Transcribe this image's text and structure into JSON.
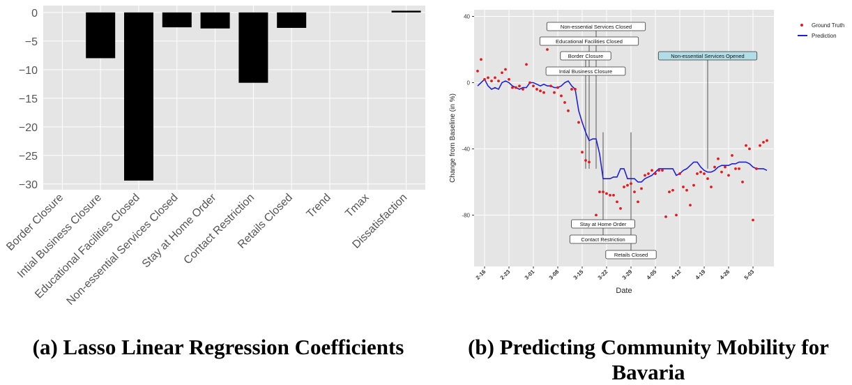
{
  "captions": {
    "a": "(a) Lasso Linear Regression Coefficients",
    "b": "(b) Predicting Community Mobility for Bavaria"
  },
  "colors": {
    "panel_bg": "#e5e5e5",
    "grid": "#ffffff",
    "bar": "#000000",
    "ground_truth": "#e41a1c",
    "prediction": "#1f1fd6",
    "highlight_box": "#b3dde6"
  },
  "chart_data": [
    {
      "type": "bar",
      "categories": [
        "Border Closure",
        "Intial Business Closure",
        "Educational Facilities Closed",
        "Non-essential Services Closed",
        "Stay at Home Order",
        "Contact Restriction",
        "Retails Closed",
        "Trend",
        "Tmax",
        "Dissatisfaction"
      ],
      "values": [
        0,
        -8.0,
        -29.4,
        -2.6,
        -2.8,
        -12.3,
        -2.7,
        0,
        0,
        0.3
      ],
      "ylim": [
        -31,
        1.2
      ],
      "yticks": [
        0,
        -5,
        -10,
        -15,
        -20,
        -25,
        -30
      ],
      "title": "",
      "xlabel": "",
      "ylabel": "",
      "grid": true
    },
    {
      "type": "line",
      "xlabel": "Date",
      "ylabel": "Change from Baseline (in %)",
      "ylim": [
        -111,
        44
      ],
      "yticks": [
        40,
        0,
        -40,
        -80
      ],
      "xticks": [
        "2-16",
        "2-23",
        "3-01",
        "3-08",
        "3-15",
        "3-22",
        "3-29",
        "4-05",
        "4-12",
        "4-19",
        "4-26",
        "5-03"
      ],
      "xticks_day": [
        0,
        7,
        14,
        21,
        28,
        35,
        42,
        49,
        56,
        63,
        70,
        77
      ],
      "xlim_day": [
        -3,
        83
      ],
      "legend": {
        "position": "top-right",
        "entries": [
          "Ground Truth",
          "Prediction"
        ]
      },
      "series": [
        {
          "name": "Prediction",
          "style": "line",
          "x": [
            -2,
            -1,
            0,
            1,
            2,
            3,
            4,
            5,
            6,
            7,
            8,
            9,
            10,
            11,
            12,
            13,
            14,
            15,
            16,
            17,
            18,
            19,
            20,
            21,
            22,
            23,
            24,
            25,
            26,
            27,
            28,
            29,
            30,
            31,
            32,
            33,
            34,
            35,
            36,
            37,
            38,
            39,
            40,
            41,
            42,
            43,
            44,
            45,
            46,
            47,
            48,
            49,
            50,
            51,
            52,
            53,
            54,
            55,
            56,
            57,
            58,
            59,
            60,
            61,
            62,
            63,
            64,
            65,
            66,
            67,
            68,
            69,
            70,
            71,
            72,
            73,
            74,
            75,
            76,
            77,
            78,
            79,
            80,
            81
          ],
          "y": [
            -2,
            0,
            2,
            -2,
            -4,
            -3,
            -4,
            0,
            1,
            0,
            -2,
            -3,
            -4,
            -3,
            -3,
            0,
            0,
            -1,
            -2,
            -1,
            -2,
            -2,
            -3,
            -3,
            -2,
            0,
            1,
            -2,
            -4,
            -17,
            -24,
            -30,
            -35,
            -34,
            -34,
            -43,
            -58,
            -58,
            -58,
            -57,
            -57,
            -52,
            -52,
            -58,
            -58,
            -58,
            -60,
            -60,
            -58,
            -57,
            -56,
            -54,
            -52,
            -52,
            -52,
            -52,
            -52,
            -56,
            -55,
            -53,
            -52,
            -50,
            -48,
            -48,
            -51,
            -53,
            -54,
            -54,
            -53,
            -51,
            -50,
            -50,
            -50,
            -49,
            -49,
            -48,
            -48,
            -48,
            -49,
            -51,
            -52,
            -52,
            -52,
            -53
          ]
        },
        {
          "name": "Ground Truth",
          "style": "points",
          "x": [
            -2,
            -1,
            0,
            1,
            2,
            3,
            4,
            5,
            6,
            7,
            8,
            9,
            10,
            11,
            12,
            13,
            14,
            15,
            16,
            17,
            18,
            19,
            20,
            21,
            22,
            23,
            24,
            25,
            26,
            27,
            28,
            29,
            30,
            31,
            32,
            33,
            34,
            35,
            36,
            37,
            38,
            39,
            40,
            41,
            42,
            43,
            44,
            45,
            46,
            47,
            48,
            49,
            50,
            51,
            52,
            53,
            54,
            55,
            56,
            57,
            58,
            59,
            60,
            61,
            62,
            63,
            64,
            65,
            66,
            67,
            68,
            69,
            70,
            71,
            72,
            73,
            74,
            75,
            76,
            77,
            78,
            79,
            80,
            81
          ],
          "y": [
            7,
            14,
            2,
            3,
            1,
            3,
            1,
            6,
            8,
            2,
            -3,
            -3,
            -2,
            -4,
            11,
            0,
            -2,
            -4,
            -5,
            -6,
            20,
            -2,
            -6,
            -3,
            -8,
            -12,
            -17,
            -4,
            -4,
            -24,
            -42,
            -47,
            -48,
            -84,
            -80,
            -66,
            -66,
            -67,
            -68,
            -68,
            -72,
            -76,
            -63,
            -62,
            -61,
            -66,
            -72,
            -64,
            -56,
            -55,
            -53,
            -55,
            -53,
            -53,
            -81,
            -66,
            -65,
            -80,
            -55,
            -63,
            -65,
            -74,
            -62,
            -55,
            -54,
            -55,
            -58,
            -63,
            -51,
            -46,
            -54,
            -51,
            -56,
            -44,
            -52,
            -52,
            -60,
            -38,
            -40,
            -83,
            -52,
            -38,
            -36,
            -35
          ]
        }
      ],
      "annotations": [
        {
          "text": "Non-essential Services Closed",
          "day": 32,
          "side": "top",
          "highlight": false
        },
        {
          "text": "Educational Facilities Closed",
          "day": 30,
          "side": "top",
          "highlight": false
        },
        {
          "text": "Border Closure",
          "day": 29,
          "side": "top",
          "highlight": false
        },
        {
          "text": "Intial Business Closure",
          "day": 29,
          "side": "top",
          "highlight": false
        },
        {
          "text": "Non-essential Services Opened",
          "day": 64,
          "side": "top",
          "highlight": true
        },
        {
          "text": "Stay at Home Order",
          "day": 34,
          "side": "bottom",
          "highlight": false
        },
        {
          "text": "Contact Restriction",
          "day": 34,
          "side": "bottom",
          "highlight": false
        },
        {
          "text": "Retails Closed",
          "day": 42,
          "side": "bottom",
          "highlight": false
        }
      ]
    }
  ]
}
